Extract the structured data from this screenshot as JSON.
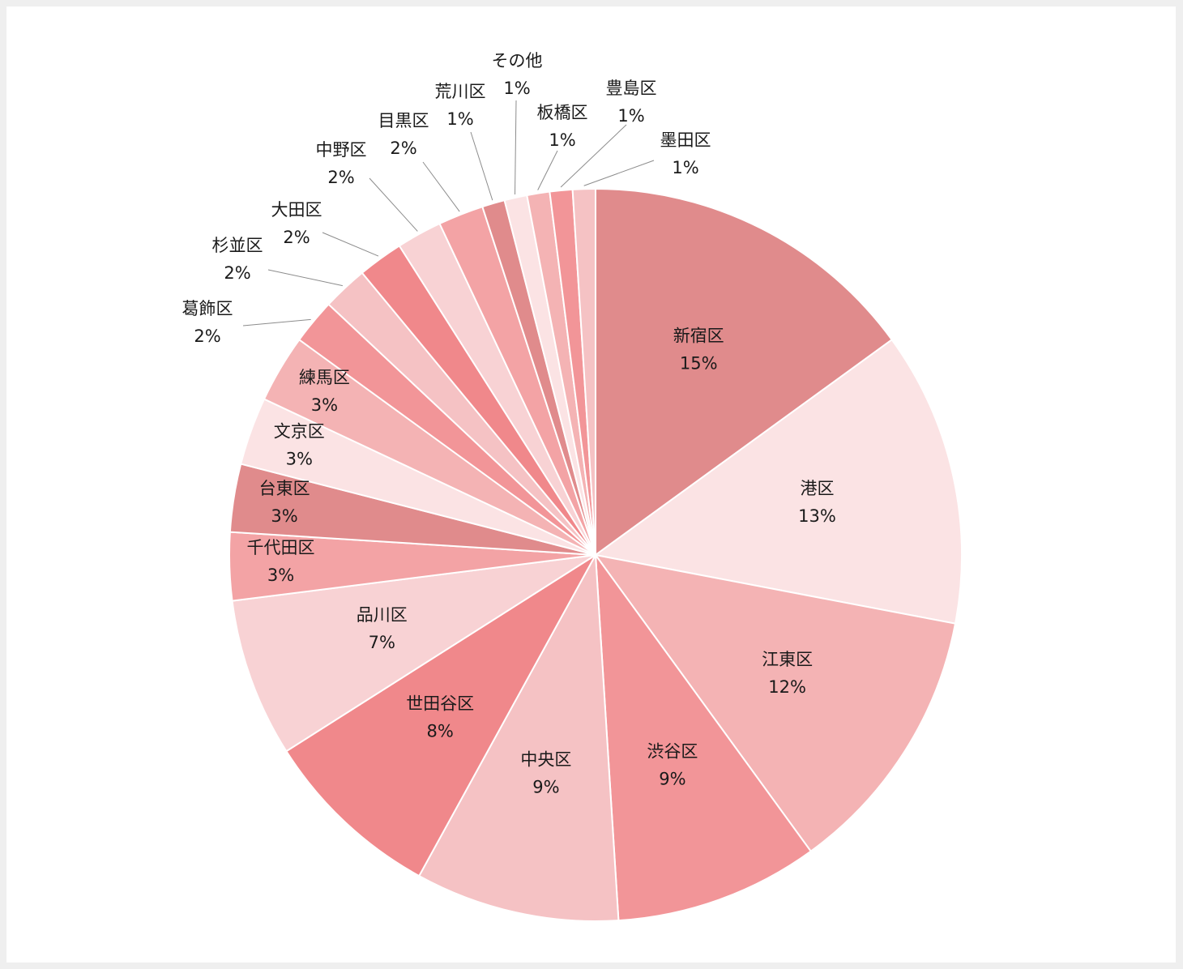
{
  "chart_data": {
    "type": "pie",
    "start_angle_deg": 0,
    "direction": "clockwise",
    "slices": [
      {
        "label": "新宿区",
        "value": 15,
        "display": "15%",
        "color": "#e08b8c"
      },
      {
        "label": "港区",
        "value": 13,
        "display": "13%",
        "color": "#fbe3e4"
      },
      {
        "label": "江東区",
        "value": 12,
        "display": "12%",
        "color": "#f4b3b4"
      },
      {
        "label": "渋谷区",
        "value": 9,
        "display": "9%",
        "color": "#f29598"
      },
      {
        "label": "中央区",
        "value": 9,
        "display": "9%",
        "color": "#f5c2c4"
      },
      {
        "label": "世田谷区",
        "value": 8,
        "display": "8%",
        "color": "#f0888b"
      },
      {
        "label": "品川区",
        "value": 7,
        "display": "7%",
        "color": "#f8d2d4"
      },
      {
        "label": "千代田区",
        "value": 3,
        "display": "3%",
        "color": "#f3a3a5"
      },
      {
        "label": "台東区",
        "value": 3,
        "display": "3%",
        "color": "#e08b8c"
      },
      {
        "label": "文京区",
        "value": 3,
        "display": "3%",
        "color": "#fbe3e4"
      },
      {
        "label": "練馬区",
        "value": 3,
        "display": "3%",
        "color": "#f4b3b4"
      },
      {
        "label": "葛飾区",
        "value": 2,
        "display": "2%",
        "color": "#f29598"
      },
      {
        "label": "杉並区",
        "value": 2,
        "display": "2%",
        "color": "#f5c2c4"
      },
      {
        "label": "大田区",
        "value": 2,
        "display": "2%",
        "color": "#f0888b"
      },
      {
        "label": "中野区",
        "value": 2,
        "display": "2%",
        "color": "#f8d2d4"
      },
      {
        "label": "目黒区",
        "value": 2,
        "display": "2%",
        "color": "#f3a3a5"
      },
      {
        "label": "荒川区",
        "value": 1,
        "display": "1%",
        "color": "#e08b8c"
      },
      {
        "label": "その他",
        "value": 1,
        "display": "1%",
        "color": "#fbe3e4"
      },
      {
        "label": "板橋区",
        "value": 1,
        "display": "1%",
        "color": "#f4b3b4"
      },
      {
        "label": "豊島区",
        "value": 1,
        "display": "1%",
        "color": "#f29598"
      },
      {
        "label": "墨田区",
        "value": 1,
        "display": "1%",
        "color": "#f5c2c4"
      }
    ]
  }
}
